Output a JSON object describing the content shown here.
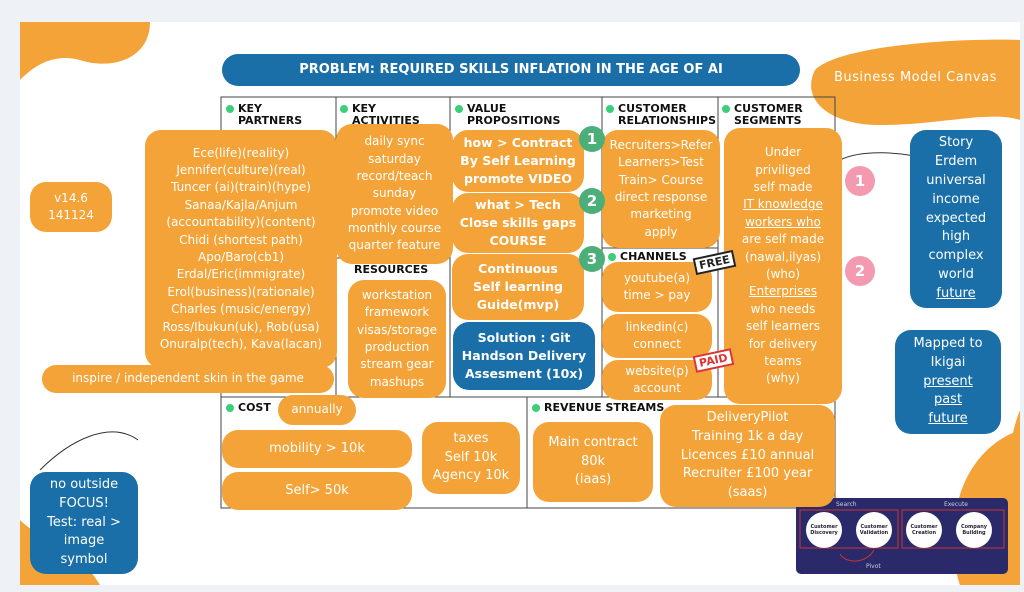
{
  "title": "PROBLEM: REQUIRED SKILLS INFLATION IN THE AGE OF AI",
  "canvas_label": "Business Model Canvas",
  "sections": {
    "key_partners": "KEY PARTNERS",
    "key_activities": "KEY ACTIVITIES",
    "value_propositions": "VALUE PROPOSITIONS",
    "customer_relationships": "CUSTOMER RELATIONSHIPS",
    "customer_segments": "CUSTOMER SEGMENTS",
    "key_resources": "RESOURCES",
    "channels": "CHANNELS",
    "cost": "COST",
    "revenue_streams": "REVENUE STREAMS"
  },
  "notes": {
    "version": {
      "lines": [
        "v14.6",
        "141124"
      ]
    },
    "partners": {
      "lines": [
        "Ece(life)(reality)",
        "Jennifer(culture)(real)",
        "Tuncer (ai)(train)(hype)",
        "Sanaa/Kajla/Anjum",
        "(accountability)(content)",
        "Chidi (shortest path)",
        "Apo/Baro(cb1)",
        "Erdal/Eric(immigrate)",
        "Erol(business)(rationale)",
        "Charles (music/energy)",
        "Ross/Ibukun(uk), Rob(usa)",
        "Onuralp(tech), Kava(lacan)"
      ]
    },
    "inspire": {
      "lines": [
        "inspire / independent skin in the game"
      ]
    },
    "activities": {
      "lines": [
        "daily sync",
        "saturday",
        "record/teach",
        "sunday",
        "promote video",
        "monthly course",
        "quarter feature"
      ]
    },
    "resources": {
      "lines": [
        "workstation",
        "framework",
        "visas/storage",
        "production",
        "stream gear",
        "mashups"
      ]
    },
    "vp1": {
      "lines": [
        "how > Contract",
        "By Self Learning",
        "promote VIDEO"
      ]
    },
    "vp2": {
      "lines": [
        "what > Tech",
        "Close skills gaps",
        "COURSE"
      ]
    },
    "vp3": {
      "lines": [
        "Continuous",
        "Self learning",
        "Guide(mvp)"
      ]
    },
    "solution": {
      "lines": [
        "Solution : Git",
        "Handson Delivery",
        "Assesment (10x)"
      ]
    },
    "relationships": {
      "lines": [
        "Recruiters>Refer",
        "Learners>Test",
        "Train> Course",
        "direct response",
        "marketing",
        "apply"
      ]
    },
    "channel_a": {
      "lines": [
        "youtube(a)",
        "time > pay"
      ]
    },
    "channel_b": {
      "lines": [
        "linkedin(c)",
        "connect"
      ]
    },
    "channel_c": {
      "lines": [
        "website(p)",
        "account"
      ]
    },
    "segments": {
      "lines": [
        "Under",
        "priviliged",
        "self made",
        "IT knowledge",
        "workers who",
        "are self made",
        "(nawal,ilyas)",
        "(who)",
        "Enterprises",
        "who needs",
        "self learners",
        "for delivery",
        "teams",
        "(why)"
      ]
    },
    "story": {
      "lines": [
        "Story",
        "Erdem",
        "universal",
        "income",
        "expected",
        "high",
        "complex",
        "world",
        "future"
      ]
    },
    "ikigai": {
      "lines": [
        "Mapped to",
        "Ikigai",
        "present",
        "past",
        "future"
      ]
    },
    "focus": {
      "lines": [
        "no outside",
        "FOCUS!",
        "Test: real >",
        "image",
        "symbol"
      ]
    },
    "annually": {
      "lines": [
        "annually"
      ]
    },
    "mobility": {
      "lines": [
        "mobility > 10k"
      ]
    },
    "self": {
      "lines": [
        "Self> 50k"
      ]
    },
    "taxes": {
      "lines": [
        "taxes",
        "Self 10k",
        "Agency 10k"
      ]
    },
    "contract": {
      "lines": [
        "Main contract",
        "80k",
        "(iaas)"
      ]
    },
    "delivery": {
      "lines": [
        "DeliveryPilot",
        "Training 1k a day",
        "Licences  £10 annual",
        "Recruiter  £100 year",
        "(saas)"
      ]
    }
  },
  "badges": {
    "green": [
      "1",
      "2",
      "3"
    ],
    "pink": [
      "1",
      "2"
    ]
  },
  "stamps": [
    "FREE",
    "PAID"
  ],
  "diagram": {
    "search": "Search",
    "execute": "Execute",
    "steps": [
      "Customer Discovery",
      "Customer Validation",
      "Customer Creation",
      "Company Building"
    ],
    "pivot": "Pivot"
  }
}
